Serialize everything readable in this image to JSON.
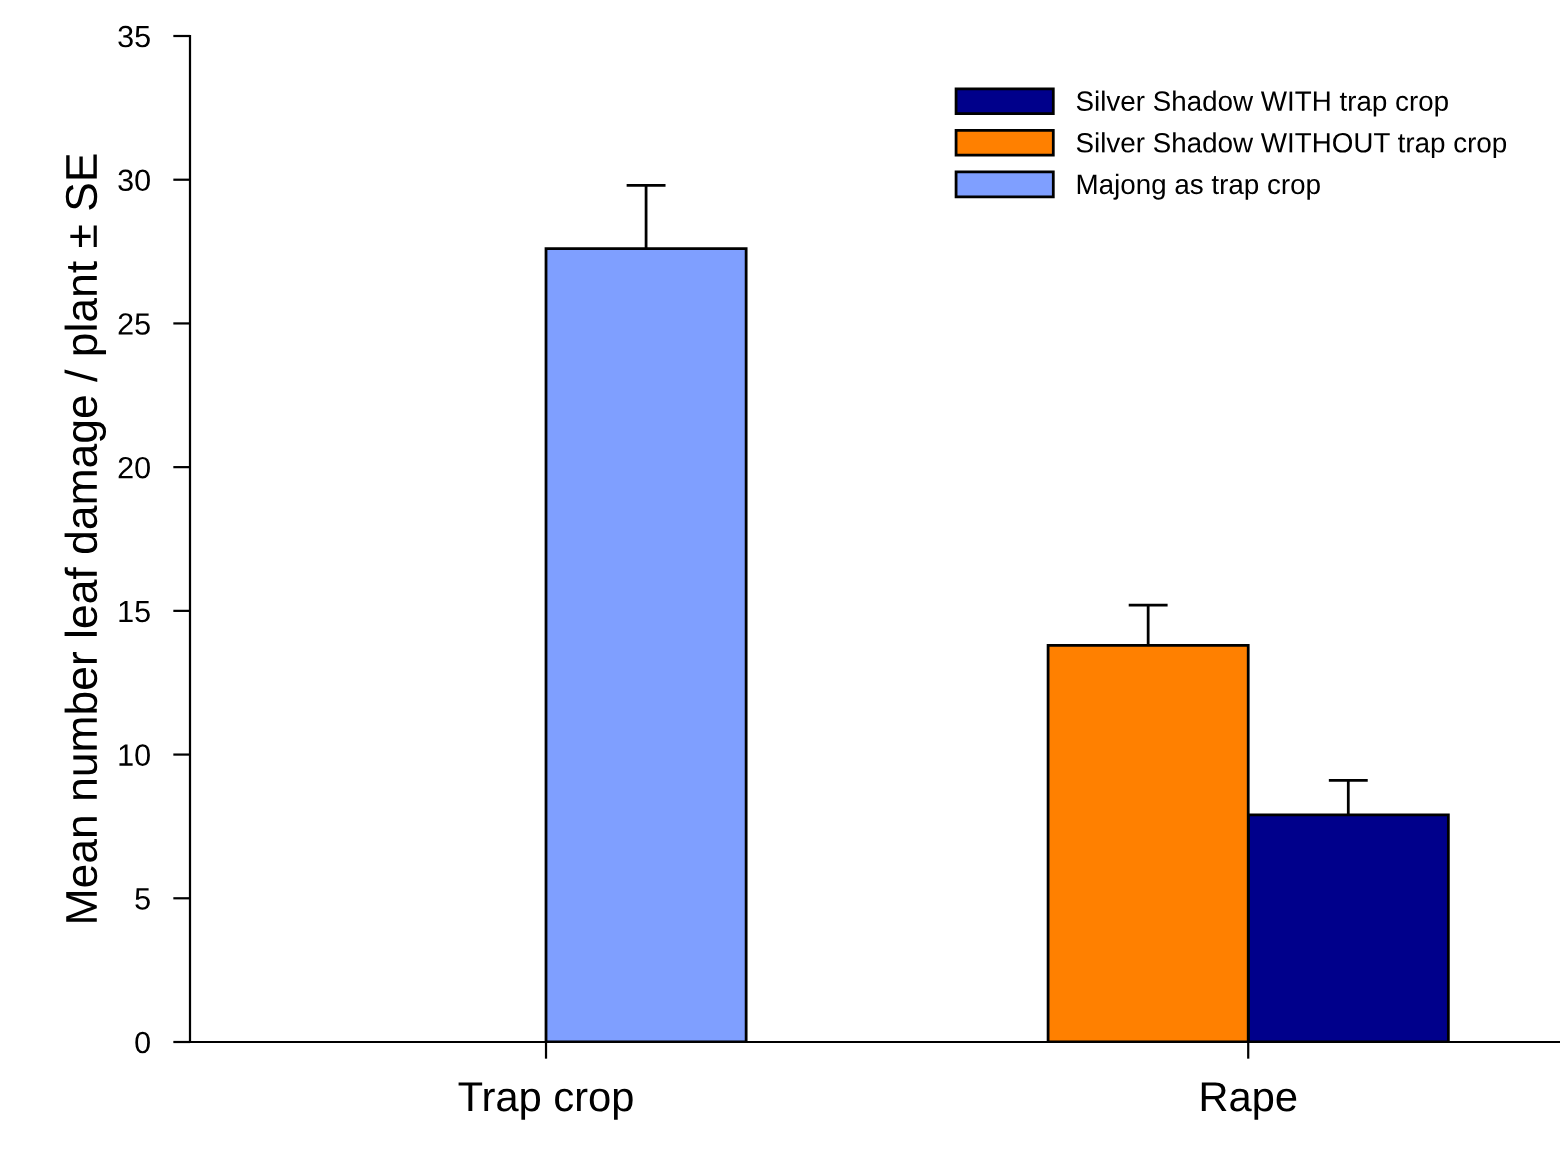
{
  "chart_data": {
    "type": "bar",
    "ylabel": "Mean number leaf damage / plant ± SE",
    "categories": [
      "Trap crop",
      "Rape"
    ],
    "series": [
      {
        "name": "Silver Shadow WITH trap crop",
        "color": "#00008b",
        "values": [
          null,
          7.9
        ],
        "errors": [
          null,
          1.2
        ]
      },
      {
        "name": "Silver Shadow WITHOUT trap crop",
        "color": "#ff8000",
        "values": [
          null,
          13.8
        ],
        "errors": [
          null,
          1.4
        ]
      },
      {
        "name": "Majong as trap crop",
        "color": "#7f9fff",
        "values": [
          27.6,
          null
        ],
        "errors": [
          2.2,
          null
        ]
      }
    ],
    "ylim": [
      0,
      35
    ],
    "yticks": [
      0,
      5,
      10,
      15,
      20,
      25,
      30,
      35
    ],
    "grid": false,
    "legend": "top right"
  }
}
